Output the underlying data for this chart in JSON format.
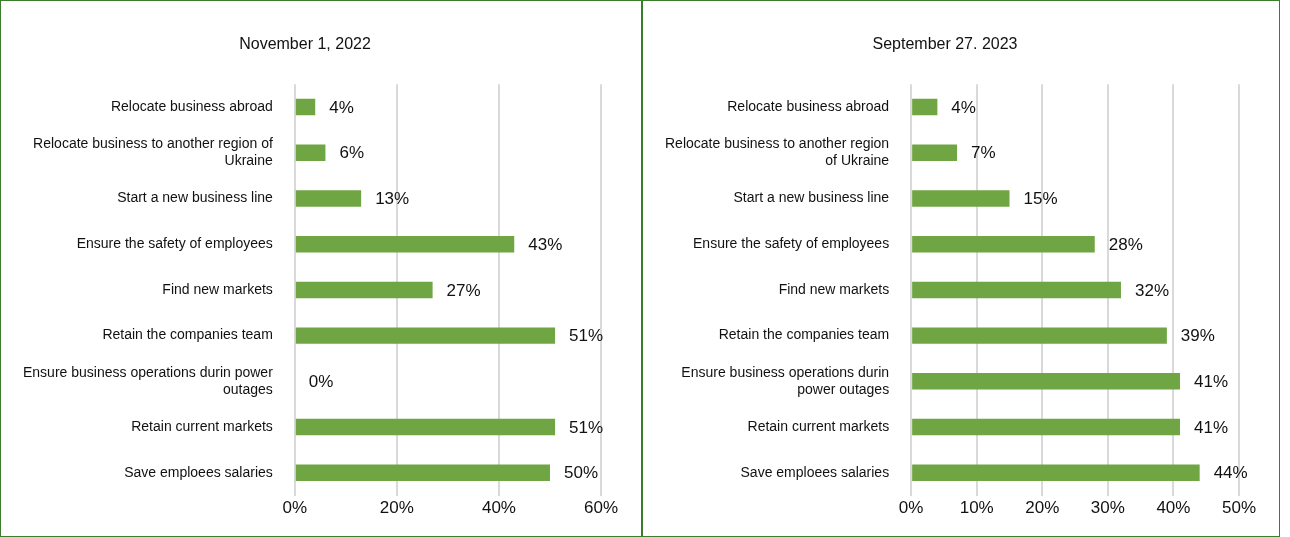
{
  "chart_data": [
    {
      "type": "bar",
      "orientation": "horizontal",
      "title": "November 1, 2022",
      "categories": [
        "Relocate business abroad",
        "Relocate business to another region of Ukraine",
        "Start a new business line",
        "Ensure the safety of employees",
        "Find new markets",
        "Retain the companies team",
        "Ensure business operations durin power outages",
        "Retain current markets",
        "Save emploees salaries"
      ],
      "values": [
        4,
        6,
        13,
        43,
        27,
        51,
        0,
        51,
        50
      ],
      "color": "#70a544",
      "value_labels": [
        "4%",
        "6%",
        "13%",
        "43%",
        "27%",
        "51%",
        "0%",
        "51%",
        "50%"
      ],
      "xlim": [
        0,
        60
      ],
      "xticks": [
        {
          "value": 0,
          "label": "0%"
        },
        {
          "value": 20,
          "label": "20%"
        },
        {
          "value": 40,
          "label": "40%"
        },
        {
          "value": 60,
          "label": "60%"
        }
      ],
      "grid": "x"
    },
    {
      "type": "bar",
      "orientation": "horizontal",
      "title": "September 27. 2023",
      "categories": [
        "Relocate business abroad",
        "Relocate business to another region of Ukraine",
        "Start a new business line",
        "Ensure the safety of employees",
        "Find new markets",
        "Retain the companies team",
        "Ensure business operations durin power outages",
        "Retain current markets",
        "Save emploees salaries"
      ],
      "values": [
        4,
        7,
        15,
        28,
        32,
        39,
        41,
        41,
        44
      ],
      "color": "#70a544",
      "value_labels": [
        "4%",
        "7%",
        "15%",
        "28%",
        "32%",
        "39%",
        "41%",
        "41%",
        "44%"
      ],
      "xlim": [
        0,
        50
      ],
      "xticks": [
        {
          "value": 0,
          "label": "0%"
        },
        {
          "value": 10,
          "label": "10%"
        },
        {
          "value": 20,
          "label": "20%"
        },
        {
          "value": 30,
          "label": "30%"
        },
        {
          "value": 40,
          "label": "40%"
        },
        {
          "value": 50,
          "label": "50%"
        }
      ],
      "grid": "x"
    }
  ]
}
